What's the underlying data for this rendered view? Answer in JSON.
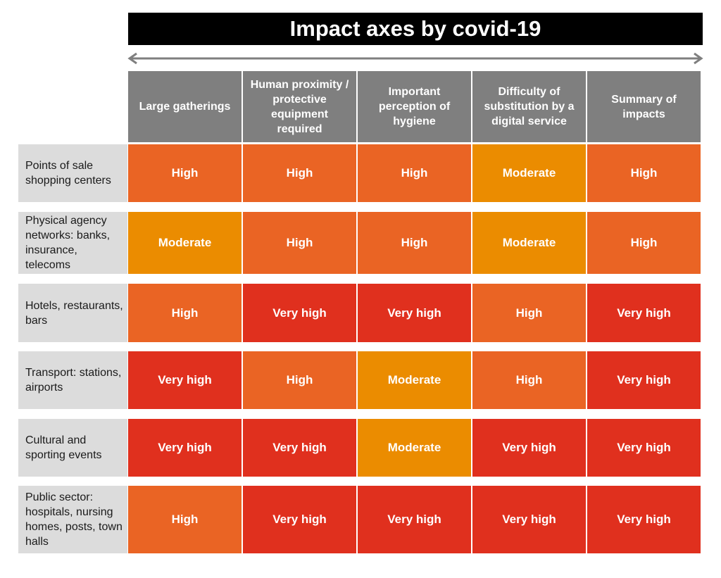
{
  "colors": {
    "Very high": "#e0301e",
    "High": "#ea6424",
    "Moderate": "#eb8c00",
    "header": "#7f7f7f",
    "row_label": "#dcdcdc"
  },
  "chart_data": {
    "type": "table",
    "title": "Impact axes by covid-19",
    "columns": [
      "Large gatherings",
      "Human proximity / protective equipment required",
      "Important perception of hygiene",
      "Difficulty of substitution by a digital service",
      "Summary of impacts"
    ],
    "rows": [
      {
        "label": "Points of sale shopping centers",
        "values": [
          "High",
          "High",
          "High",
          "Moderate",
          "High"
        ]
      },
      {
        "label": "Physical agency networks: banks, insurance, telecoms",
        "values": [
          "Moderate",
          "High",
          "High",
          "Moderate",
          "High"
        ]
      },
      {
        "label": "Hotels, restaurants, bars",
        "values": [
          "High",
          "Very high",
          "Very high",
          "High",
          "Very high"
        ]
      },
      {
        "label": "Transport: stations, airports",
        "values": [
          "Very high",
          "High",
          "Moderate",
          "High",
          "Very high"
        ]
      },
      {
        "label": "Cultural and sporting events",
        "values": [
          "Very high",
          "Very high",
          "Moderate",
          "Very high",
          "Very high"
        ]
      },
      {
        "label": "Public sector: hospitals, nursing homes, posts, town halls",
        "values": [
          "High",
          "Very high",
          "Very high",
          "Very high",
          "Very high"
        ]
      }
    ]
  }
}
